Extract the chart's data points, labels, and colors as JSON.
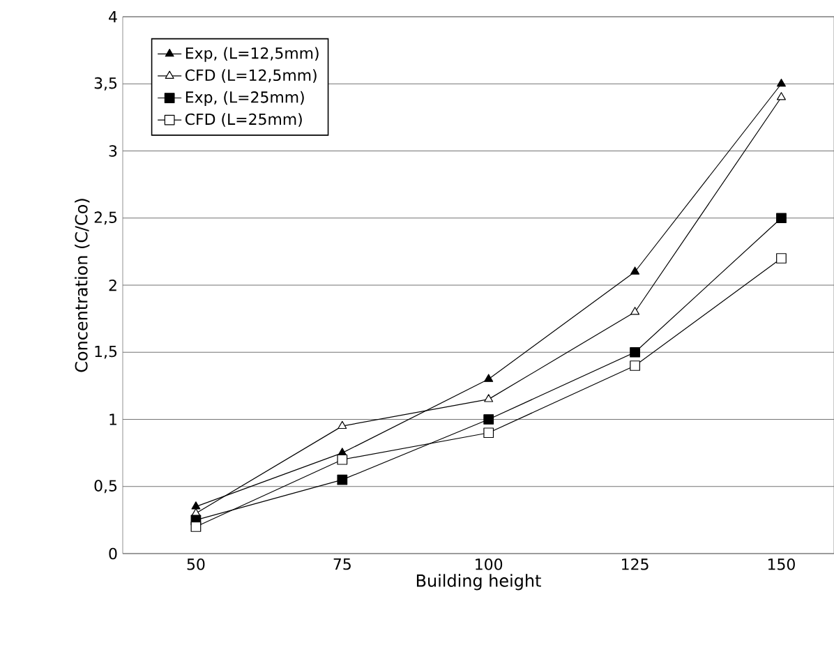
{
  "chart_data": {
    "type": "line",
    "xlabel": "Building height",
    "ylabel": "Concentration (C/Co)",
    "categories": [
      "50",
      "75",
      "100",
      "125",
      "150"
    ],
    "series": [
      {
        "name": "Exp, (L=12,5mm)",
        "color": "#000000",
        "marker": "triangle",
        "values": [
          0.35,
          0.75,
          1.3,
          2.1,
          3.5
        ]
      },
      {
        "name": "CFD (L=12,5mm)",
        "color": "#000000",
        "marker": "triangle-open",
        "values": [
          0.3,
          0.95,
          1.15,
          1.8,
          3.4
        ]
      },
      {
        "name": "Exp, (L=25mm)",
        "color": "#000000",
        "marker": "square",
        "values": [
          0.25,
          0.55,
          1.0,
          1.5,
          2.5
        ]
      },
      {
        "name": "CFD (L=25mm)",
        "color": "#000000",
        "marker": "square-open",
        "values": [
          0.2,
          0.7,
          0.9,
          1.4,
          2.2
        ]
      }
    ],
    "ylim": [
      0,
      4
    ],
    "yticks": [
      0,
      {
        "value": 0.5,
        "label": "0,5"
      },
      1,
      {
        "value": 1.5,
        "label": "1,5"
      },
      2,
      {
        "value": 2.5,
        "label": "2,5"
      },
      3,
      {
        "value": 3.5,
        "label": "3,5"
      },
      4
    ],
    "grid": "y",
    "legend": "top left",
    "line_style": "solid"
  }
}
